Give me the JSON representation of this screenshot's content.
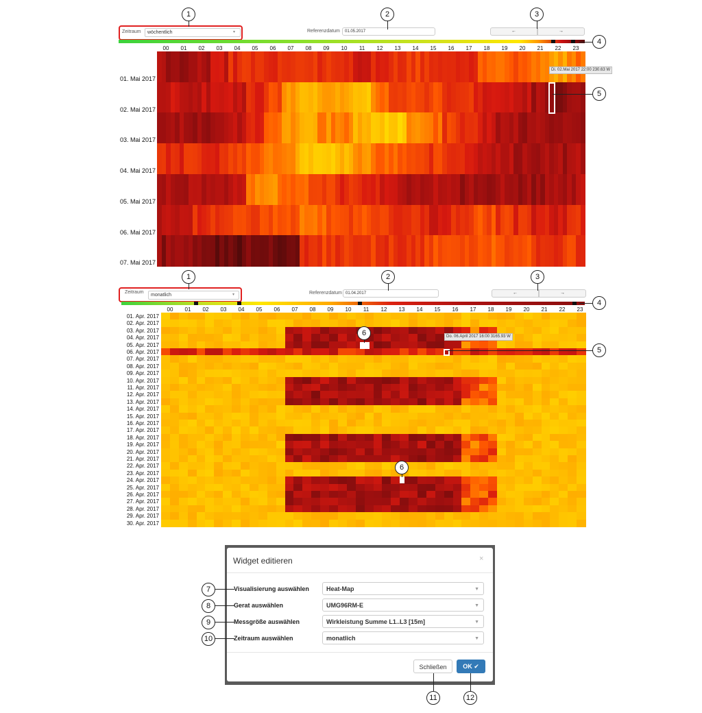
{
  "top_panel": {
    "period_label": "Zeitraum",
    "period_value": "wöchentlich",
    "ref_label": "Referenzdatum",
    "ref_value": "01.05.2017",
    "prev_icon": "arrow-left-icon",
    "next_icon": "arrow-right-icon",
    "prev_label": "←",
    "next_label": "→",
    "hours": [
      "00",
      "01",
      "02",
      "03",
      "04",
      "05",
      "06",
      "07",
      "08",
      "09",
      "10",
      "11",
      "12",
      "13",
      "14",
      "15",
      "16",
      "17",
      "18",
      "19",
      "20",
      "21",
      "22",
      "23"
    ],
    "days": [
      "01. Mai 2017",
      "02. Mai 2017",
      "03. Mai 2017",
      "04. Mai 2017",
      "05. Mai 2017",
      "06. Mai 2017",
      "07. Mai 2017"
    ],
    "tooltip": "Di. 02.Mai 2017 22:00 230.63 W"
  },
  "bottom_panel": {
    "period_label": "Zeitraum",
    "period_value": "monatlich",
    "ref_label": "Referenzdatum",
    "ref_value": "01.04.2017",
    "prev_label": "←",
    "next_label": "→",
    "hours": [
      "00",
      "01",
      "02",
      "03",
      "04",
      "05",
      "06",
      "07",
      "08",
      "09",
      "10",
      "11",
      "12",
      "13",
      "14",
      "15",
      "16",
      "17",
      "18",
      "19",
      "20",
      "21",
      "22",
      "23"
    ],
    "days": [
      "01. Apr. 2017",
      "02. Apr. 2017",
      "03. Apr. 2017",
      "04. Apr. 2017",
      "05. Apr. 2017",
      "06. Apr. 2017",
      "07. Apr. 2017",
      "08. Apr. 2017",
      "09. Apr. 2017",
      "10. Apr. 2017",
      "11. Apr. 2017",
      "12. Apr. 2017",
      "13. Apr. 2017",
      "14. Apr. 2017",
      "15. Apr. 2017",
      "16. Apr. 2017",
      "17. Apr. 2017",
      "18. Apr. 2017",
      "19. Apr. 2017",
      "20. Apr. 2017",
      "21. Apr. 2017",
      "22. Apr. 2017",
      "23. Apr. 2017",
      "24. Apr. 2017",
      "25. Apr. 2017",
      "26. Apr. 2017",
      "27. Apr. 2017",
      "28. Apr. 2017",
      "29. Apr. 2017",
      "30. Apr. 2017"
    ],
    "tooltip": "Do. 06.April 2017 16:00 3165.93 W"
  },
  "callouts": {
    "c1": "1",
    "c2": "2",
    "c3": "3",
    "c4": "4",
    "c5": "5",
    "c6": "6",
    "c7": "7",
    "c8": "8",
    "c9": "9",
    "c10": "10",
    "c11": "11",
    "c12": "12"
  },
  "dialog": {
    "title": "Widget editieren",
    "close_icon": "×",
    "rows": [
      {
        "label": "Visualisierung auswählen",
        "value": "Heat-Map"
      },
      {
        "label": "Gerat auswählen",
        "value": "UMG96RM-E"
      },
      {
        "label": "Messgröße auswählen",
        "value": "Wirkleistung Summe L1..L3 [15m]"
      },
      {
        "label": "Zeitraum auswählen",
        "value": "monatlich"
      }
    ],
    "close_button": "Schließen",
    "ok_button": "OK ✔"
  },
  "colors": {
    "highlight": "#e02020",
    "dark": "#5a0a0a",
    "red": "#cc1111",
    "orange": "#ff8800",
    "yellow": "#ffe600",
    "ok_button": "#337ab7"
  }
}
